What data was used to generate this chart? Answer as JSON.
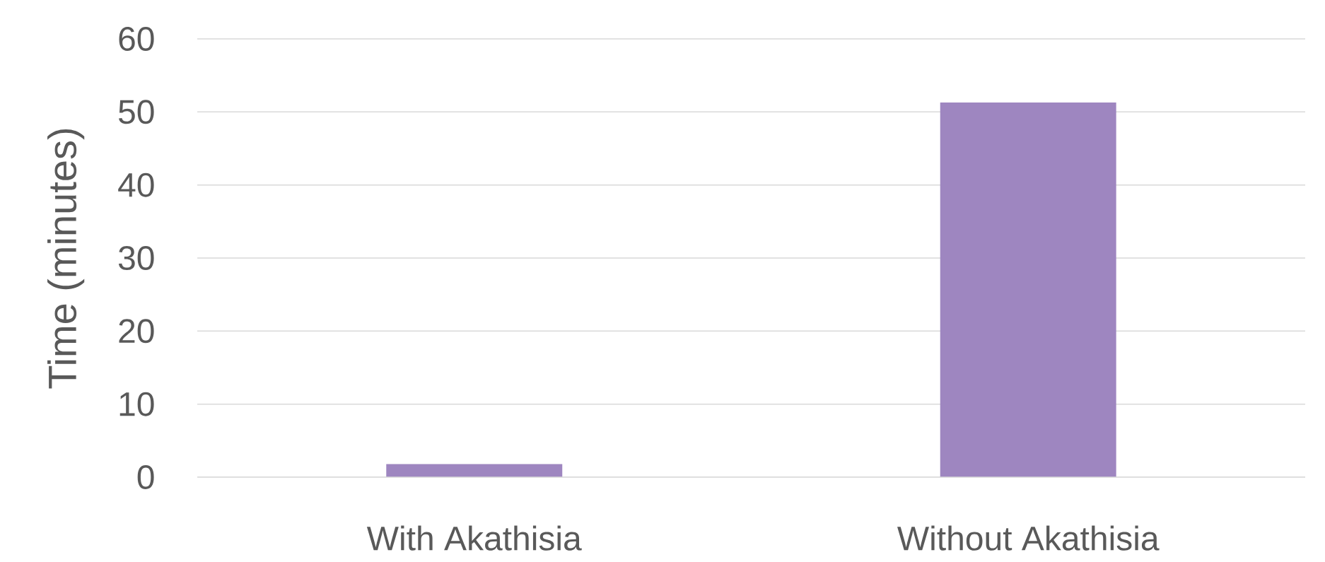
{
  "chart_data": {
    "type": "bar",
    "ylabel": "Time (minutes)",
    "categories": [
      "With Akathisia",
      "Without Akathisia"
    ],
    "values": [
      1.8,
      51.3
    ],
    "color": "#9e86c0",
    "ylim": [
      0,
      60
    ],
    "yticks": [
      0,
      10,
      20,
      30,
      40,
      50,
      60
    ],
    "grid": "y"
  }
}
